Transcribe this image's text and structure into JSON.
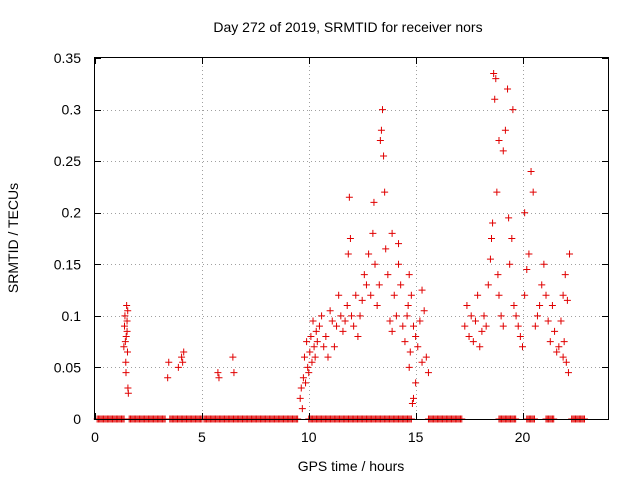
{
  "chart_data": {
    "type": "scatter",
    "title": "Day 272 of 2019, SRMTID for receiver nors",
    "xlabel": "GPS time / hours",
    "ylabel": "SRMTID / TECUs",
    "xlim": [
      0,
      24
    ],
    "ylim": [
      0,
      0.35
    ],
    "xticks": [
      0,
      5,
      10,
      15,
      20
    ],
    "xtick_labels": [
      "0",
      "5",
      "10",
      "15",
      "20"
    ],
    "yticks": [
      0,
      0.05,
      0.1,
      0.15,
      0.2,
      0.25,
      0.3,
      0.35
    ],
    "ytick_labels": [
      "0",
      "0.05",
      "0.1",
      "0.15",
      "0.2",
      "0.25",
      "0.3",
      "0.35"
    ],
    "grid": true,
    "marker": "+",
    "color": "#e00000",
    "zero_segments": [
      [
        0.1,
        1.4
      ],
      [
        1.6,
        3.3
      ],
      [
        3.5,
        5.0
      ],
      [
        5.1,
        9.5
      ],
      [
        10.0,
        14.8
      ],
      [
        15.6,
        17.2
      ],
      [
        18.9,
        19.7
      ],
      [
        20.2,
        20.6
      ],
      [
        21.1,
        21.5
      ],
      [
        22.3,
        22.9
      ]
    ],
    "series": [
      {
        "name": "SRMTID",
        "x": [
          1.35,
          1.38,
          1.4,
          1.42,
          1.44,
          1.46,
          1.48,
          1.5,
          1.52,
          1.54,
          1.56,
          1.45,
          1.5,
          1.53,
          3.4,
          3.45,
          3.9,
          4.05,
          4.1,
          4.15,
          5.75,
          5.8,
          6.45,
          6.5,
          9.6,
          9.65,
          9.7,
          9.75,
          9.8,
          9.85,
          9.9,
          9.95,
          10.0,
          10.05,
          10.1,
          10.15,
          10.2,
          10.25,
          10.3,
          10.35,
          10.4,
          10.5,
          10.6,
          10.7,
          10.8,
          10.9,
          11.0,
          11.1,
          11.2,
          11.3,
          11.4,
          11.5,
          11.6,
          11.7,
          11.8,
          11.85,
          11.9,
          11.95,
          12.0,
          12.1,
          12.2,
          12.3,
          12.4,
          12.5,
          12.6,
          12.7,
          12.8,
          12.9,
          13.0,
          13.05,
          13.1,
          13.2,
          13.3,
          13.35,
          13.4,
          13.45,
          13.5,
          13.55,
          13.6,
          13.7,
          13.8,
          13.9,
          14.0,
          14.1,
          14.2,
          14.3,
          14.4,
          14.5,
          14.6,
          14.65,
          14.7,
          14.75,
          14.8,
          14.85,
          14.9,
          15.0,
          15.1,
          15.2,
          15.3,
          15.4,
          15.5,
          15.6,
          14.7,
          15.0,
          15.3,
          14.9,
          13.9,
          14.2,
          17.3,
          17.4,
          17.5,
          17.6,
          17.7,
          17.8,
          17.9,
          18.0,
          18.1,
          18.2,
          18.3,
          18.4,
          18.5,
          18.55,
          18.6,
          18.65,
          18.7,
          18.75,
          18.8,
          18.85,
          18.9,
          19.0,
          19.1,
          19.2,
          19.3,
          19.4,
          19.5,
          19.6,
          19.7,
          19.8,
          19.9,
          20.0,
          20.1,
          20.2,
          20.3,
          20.4,
          20.5,
          20.6,
          20.7,
          20.8,
          20.9,
          21.0,
          21.1,
          21.2,
          21.3,
          21.4,
          21.5,
          21.6,
          21.7,
          21.8,
          21.9,
          22.0,
          22.1,
          22.2,
          21.9,
          21.95,
          22.05,
          22.15,
          19.1,
          19.55,
          18.9,
          20.1,
          19.35
        ],
        "y": [
          0.07,
          0.09,
          0.1,
          0.075,
          0.055,
          0.08,
          0.11,
          0.095,
          0.065,
          0.03,
          0.025,
          0.045,
          0.085,
          0.105,
          0.04,
          0.055,
          0.05,
          0.06,
          0.055,
          0.065,
          0.045,
          0.04,
          0.06,
          0.045,
          0.02,
          0.03,
          0.01,
          0.04,
          0.06,
          0.035,
          0.075,
          0.05,
          0.045,
          0.065,
          0.08,
          0.055,
          0.095,
          0.07,
          0.06,
          0.085,
          0.075,
          0.09,
          0.1,
          0.07,
          0.08,
          0.06,
          0.105,
          0.095,
          0.07,
          0.09,
          0.12,
          0.1,
          0.085,
          0.095,
          0.11,
          0.16,
          0.215,
          0.175,
          0.1,
          0.09,
          0.12,
          0.08,
          0.1,
          0.115,
          0.14,
          0.13,
          0.16,
          0.12,
          0.18,
          0.21,
          0.15,
          0.11,
          0.13,
          0.27,
          0.28,
          0.3,
          0.255,
          0.22,
          0.165,
          0.14,
          0.095,
          0.085,
          0.12,
          0.1,
          0.15,
          0.13,
          0.09,
          0.075,
          0.1,
          0.11,
          0.05,
          0.065,
          0.12,
          0.015,
          0.09,
          0.08,
          0.07,
          0.095,
          0.125,
          0.105,
          0.06,
          0.045,
          0.14,
          0.035,
          0.055,
          0.02,
          0.18,
          0.17,
          0.09,
          0.11,
          0.08,
          0.1,
          0.075,
          0.095,
          0.12,
          0.07,
          0.085,
          0.1,
          0.09,
          0.13,
          0.155,
          0.175,
          0.19,
          0.335,
          0.31,
          0.33,
          0.22,
          0.14,
          0.12,
          0.1,
          0.26,
          0.28,
          0.32,
          0.15,
          0.175,
          0.11,
          0.1,
          0.09,
          0.08,
          0.07,
          0.12,
          0.145,
          0.16,
          0.24,
          0.22,
          0.09,
          0.1,
          0.11,
          0.13,
          0.15,
          0.12,
          0.095,
          0.075,
          0.11,
          0.085,
          0.065,
          0.07,
          0.095,
          0.12,
          0.14,
          0.115,
          0.16,
          0.06,
          0.075,
          0.055,
          0.045,
          0.09,
          0.3,
          0.27,
          0.2,
          0.195
        ]
      }
    ]
  }
}
